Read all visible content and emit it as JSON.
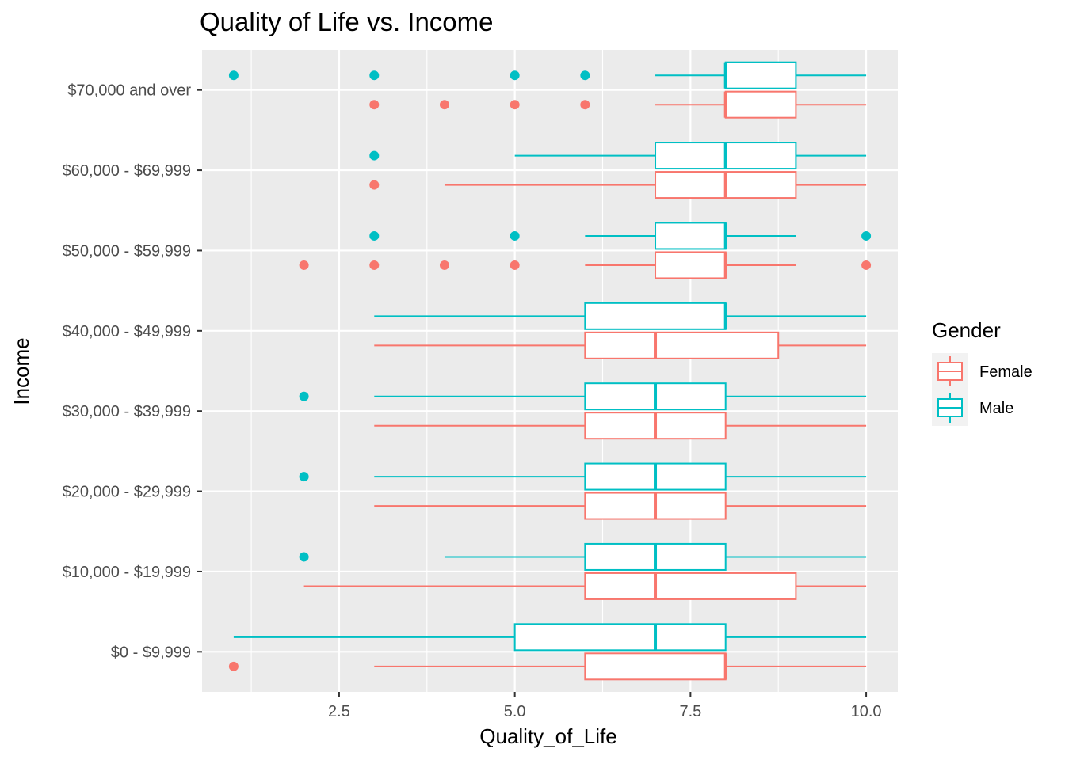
{
  "chart_data": {
    "type": "boxplot",
    "orientation": "horizontal",
    "title": "Quality of Life vs. Income",
    "xlabel": "Quality_of_Life",
    "ylabel": "Income",
    "xlim": [
      0.55,
      10.45
    ],
    "x_ticks": [
      2.5,
      5.0,
      7.5,
      10.0
    ],
    "x_tick_labels": [
      "2.5",
      "5.0",
      "7.5",
      "10.0"
    ],
    "categories": [
      "$0 - $9,999",
      "$10,000 - $19,999",
      "$20,000 - $29,999",
      "$30,000 - $39,999",
      "$40,000 - $49,999",
      "$50,000 - $59,999",
      "$60,000 - $69,999",
      "$70,000 and over"
    ],
    "grid": true,
    "legend": {
      "title": "Gender",
      "position": "right",
      "entries": [
        "Female",
        "Male"
      ]
    },
    "series": [
      {
        "name": "Female",
        "color": "#F8766D",
        "boxes": [
          {
            "whisker_low": 3,
            "q1": 6,
            "median": 8,
            "q3": 8,
            "whisker_high": 10,
            "outliers": [
              1
            ]
          },
          {
            "whisker_low": 2,
            "q1": 6,
            "median": 7,
            "q3": 9,
            "whisker_high": 10,
            "outliers": []
          },
          {
            "whisker_low": 3,
            "q1": 6,
            "median": 7,
            "q3": 8,
            "whisker_high": 10,
            "outliers": []
          },
          {
            "whisker_low": 3,
            "q1": 6,
            "median": 7,
            "q3": 8,
            "whisker_high": 10,
            "outliers": []
          },
          {
            "whisker_low": 3,
            "q1": 6,
            "median": 7,
            "q3": 8.75,
            "whisker_high": 10,
            "outliers": []
          },
          {
            "whisker_low": 6,
            "q1": 7,
            "median": 8,
            "q3": 8,
            "whisker_high": 9,
            "outliers": [
              2,
              3,
              4,
              5,
              10
            ]
          },
          {
            "whisker_low": 4,
            "q1": 7,
            "median": 8,
            "q3": 9,
            "whisker_high": 10,
            "outliers": [
              3
            ]
          },
          {
            "whisker_low": 7,
            "q1": 8,
            "median": 8,
            "q3": 9,
            "whisker_high": 10,
            "outliers": [
              3,
              4,
              5,
              6
            ]
          }
        ]
      },
      {
        "name": "Male",
        "color": "#00BFC4",
        "boxes": [
          {
            "whisker_low": 1,
            "q1": 5,
            "median": 7,
            "q3": 8,
            "whisker_high": 10,
            "outliers": []
          },
          {
            "whisker_low": 4,
            "q1": 6,
            "median": 7,
            "q3": 8,
            "whisker_high": 10,
            "outliers": [
              2
            ]
          },
          {
            "whisker_low": 3,
            "q1": 6,
            "median": 7,
            "q3": 8,
            "whisker_high": 10,
            "outliers": [
              2
            ]
          },
          {
            "whisker_low": 3,
            "q1": 6,
            "median": 7,
            "q3": 8,
            "whisker_high": 10,
            "outliers": [
              2
            ]
          },
          {
            "whisker_low": 3,
            "q1": 6,
            "median": 8,
            "q3": 8,
            "whisker_high": 10,
            "outliers": []
          },
          {
            "whisker_low": 6,
            "q1": 7,
            "median": 8,
            "q3": 8,
            "whisker_high": 9,
            "outliers": [
              3,
              5,
              10
            ]
          },
          {
            "whisker_low": 5,
            "q1": 7,
            "median": 8,
            "q3": 9,
            "whisker_high": 10,
            "outliers": [
              3
            ]
          },
          {
            "whisker_low": 7,
            "q1": 8,
            "median": 8,
            "q3": 9,
            "whisker_high": 10,
            "outliers": [
              1,
              3,
              5,
              6
            ]
          }
        ]
      }
    ]
  }
}
